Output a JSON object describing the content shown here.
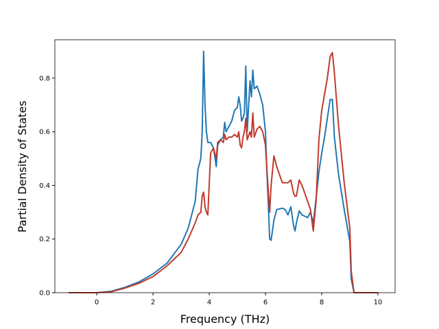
{
  "chart_data": {
    "type": "line",
    "xlabel": "Frequency (THz)",
    "ylabel": "Partial Density of States",
    "x": [
      -1,
      0,
      0.5,
      1,
      1.5,
      2,
      2.5,
      3,
      3.25,
      3.5,
      3.6,
      3.7,
      3.75,
      3.8,
      3.85,
      3.9,
      3.95,
      4.05,
      4.15,
      4.25,
      4.3,
      4.4,
      4.5,
      4.55,
      4.6,
      4.7,
      4.8,
      4.9,
      5.0,
      5.05,
      5.1,
      5.15,
      5.2,
      5.25,
      5.3,
      5.35,
      5.45,
      5.5,
      5.55,
      5.6,
      5.7,
      5.8,
      5.9,
      6.0,
      6.05,
      6.1,
      6.15,
      6.2,
      6.3,
      6.4,
      6.6,
      6.7,
      6.8,
      6.9,
      7.0,
      7.05,
      7.1,
      7.2,
      7.3,
      7.5,
      7.6,
      7.7,
      7.8,
      7.9,
      8.0,
      8.1,
      8.2,
      8.3,
      8.38,
      8.45,
      8.6,
      8.8,
      9.0,
      9.05,
      9.15,
      10
    ],
    "series": [
      {
        "color": "#1f77b4",
        "values": [
          0,
          0,
          0.005,
          0.02,
          0.04,
          0.07,
          0.11,
          0.18,
          0.24,
          0.34,
          0.46,
          0.5,
          0.6,
          0.9,
          0.7,
          0.6,
          0.56,
          0.56,
          0.54,
          0.47,
          0.55,
          0.57,
          0.58,
          0.635,
          0.6,
          0.62,
          0.64,
          0.68,
          0.69,
          0.73,
          0.7,
          0.64,
          0.65,
          0.67,
          0.845,
          0.6,
          0.79,
          0.73,
          0.83,
          0.76,
          0.77,
          0.74,
          0.7,
          0.6,
          0.45,
          0.33,
          0.2,
          0.195,
          0.27,
          0.31,
          0.315,
          0.31,
          0.29,
          0.32,
          0.25,
          0.23,
          0.26,
          0.305,
          0.29,
          0.28,
          0.3,
          0.26,
          0.35,
          0.45,
          0.52,
          0.58,
          0.65,
          0.72,
          0.72,
          0.58,
          0.44,
          0.31,
          0.19,
          0.05,
          0,
          0
        ]
      },
      {
        "color": "#c0392b",
        "values": [
          0,
          0,
          0.003,
          0.017,
          0.035,
          0.06,
          0.1,
          0.15,
          0.2,
          0.26,
          0.29,
          0.3,
          0.36,
          0.375,
          0.32,
          0.3,
          0.29,
          0.52,
          0.54,
          0.5,
          0.56,
          0.57,
          0.56,
          0.59,
          0.57,
          0.58,
          0.58,
          0.59,
          0.58,
          0.6,
          0.55,
          0.54,
          0.58,
          0.6,
          0.65,
          0.57,
          0.6,
          0.58,
          0.67,
          0.58,
          0.61,
          0.62,
          0.6,
          0.55,
          0.46,
          0.38,
          0.3,
          0.4,
          0.51,
          0.47,
          0.41,
          0.41,
          0.41,
          0.42,
          0.37,
          0.36,
          0.36,
          0.42,
          0.4,
          0.34,
          0.31,
          0.23,
          0.34,
          0.57,
          0.68,
          0.74,
          0.8,
          0.88,
          0.895,
          0.82,
          0.62,
          0.41,
          0.24,
          0.08,
          0,
          0
        ]
      }
    ],
    "xlim": [
      -1.49,
      10.61
    ],
    "xticks": [
      0,
      2,
      4,
      6,
      8,
      10
    ],
    "ylim": [
      0,
      0.943
    ],
    "yticks": [
      {
        "value": 0,
        "label": "0.0"
      },
      0.2,
      0.4,
      0.6,
      0.8
    ],
    "grid": false
  }
}
